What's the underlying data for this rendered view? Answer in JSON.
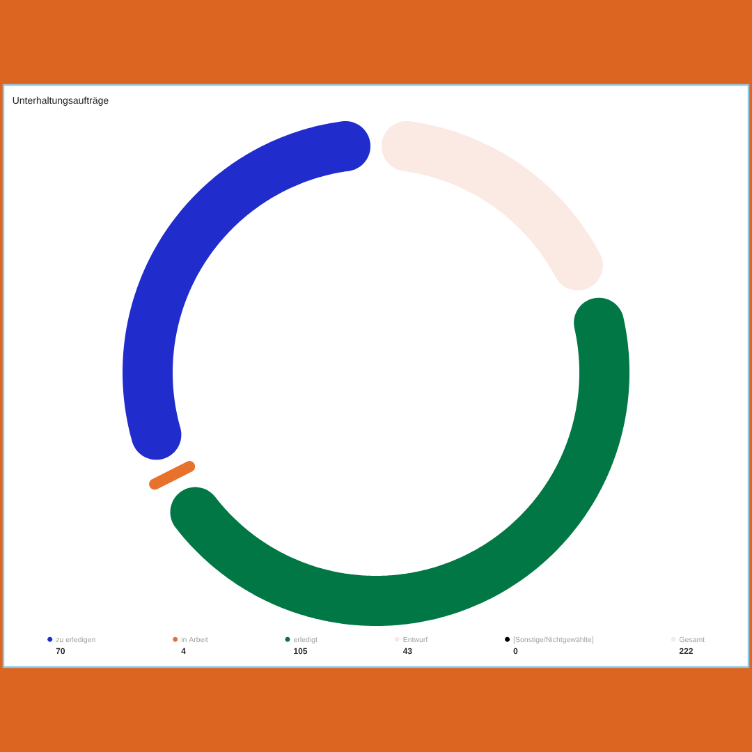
{
  "chart_data": {
    "type": "donut",
    "title": "Unterhaltungsaufträge",
    "categories": [
      "zu erledigen",
      "in Arbeit",
      "erledigt",
      "Entwurf",
      "[Sonstige/Nichtgewählte]"
    ],
    "values": [
      70,
      4,
      105,
      43,
      0
    ],
    "value_labels": [
      "70",
      "4",
      "105",
      "43",
      "0"
    ],
    "colors": [
      "#202ccc",
      "#e8712b",
      "#007744",
      "#fbe9e3",
      "#000000"
    ],
    "legend": "bottom",
    "totals": [
      "222"
    ],
    "annotations": [
      "Gesamt"
    ]
  }
}
